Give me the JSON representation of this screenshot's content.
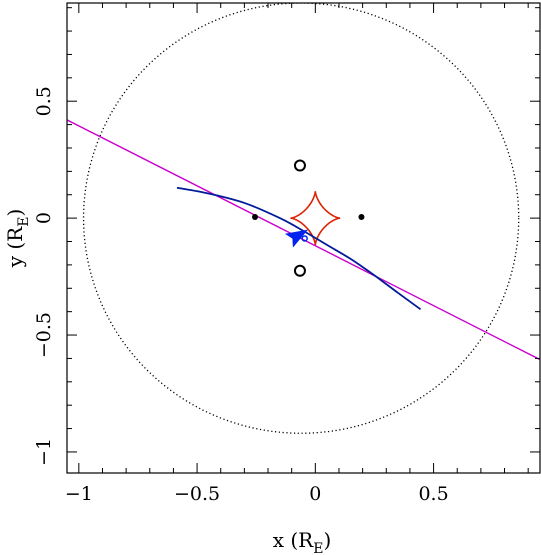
{
  "chart_data": {
    "type": "line",
    "xlabel": {
      "main": "x (R",
      "sub": "E",
      "close": ")"
    },
    "ylabel": {
      "main": "y (R",
      "sub": "E",
      "close": ")"
    },
    "xlim": [
      -1.05,
      0.95
    ],
    "ylim": [
      -1.09,
      0.92
    ],
    "grid": false,
    "x_ticks": [
      {
        "value": -1,
        "label": "−1"
      },
      {
        "value": -0.5,
        "label": "−0.5"
      },
      {
        "value": 0,
        "label": "0"
      },
      {
        "value": 0.5,
        "label": "0.5"
      }
    ],
    "y_ticks": [
      {
        "value": -1,
        "label": "−1"
      },
      {
        "value": -0.5,
        "label": "−0.5"
      },
      {
        "value": 0,
        "label": "0"
      },
      {
        "value": 0.5,
        "label": "0.5"
      }
    ],
    "minor_tick_step": 0.1,
    "series": [
      {
        "kind": "einstein-ring",
        "style": "dotted",
        "color": "#000000",
        "center": [
          -0.06,
          0.0
        ],
        "radius": 0.92
      },
      {
        "kind": "caustic",
        "style": "solid",
        "color": "#dd2200",
        "center": [
          0.0,
          0.0
        ],
        "half_width": 0.105,
        "half_height": 0.115
      },
      {
        "kind": "straight-trajectory",
        "style": "solid",
        "color": "#cc00cc",
        "x": [
          -1.05,
          0.95
        ],
        "y": [
          0.42,
          -0.605
        ]
      },
      {
        "kind": "source-trajectory",
        "style": "solid",
        "color": "#001a99",
        "x": [
          -0.585,
          -0.45,
          -0.3,
          -0.15,
          -0.05,
          0.05,
          0.15,
          0.25,
          0.35,
          0.445
        ],
        "y": [
          0.13,
          0.105,
          0.065,
          0.0,
          -0.055,
          -0.115,
          -0.175,
          -0.245,
          -0.32,
          -0.39
        ]
      }
    ],
    "lens_masses": [
      {
        "x": -0.255,
        "y": 0.005
      },
      {
        "x": 0.195,
        "y": 0.005
      }
    ],
    "images": [
      {
        "x": -0.065,
        "y": 0.225
      },
      {
        "x": -0.065,
        "y": -0.225
      }
    ],
    "source_marker": {
      "x": -0.045,
      "y": -0.087
    },
    "direction_arrow": {
      "x": -0.075,
      "y": -0.075,
      "angle_deg": 150,
      "color": "#0022ee"
    }
  }
}
